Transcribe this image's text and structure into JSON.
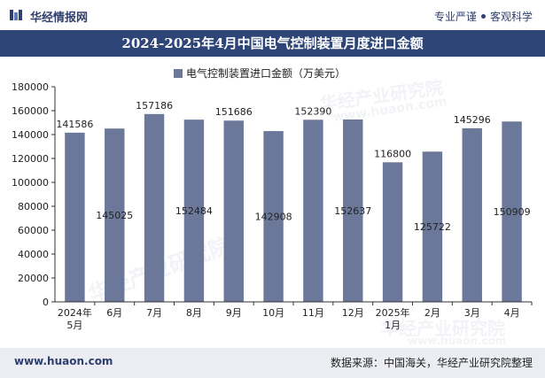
{
  "header": {
    "brand": "华经情报网",
    "slogan_left": "专业严谨",
    "slogan_right": "客观科学"
  },
  "title_bar": "2024-2025年4月中国电气控制装置月度进口金额",
  "footer": {
    "website": "www.huaon.com",
    "source": "数据来源：中国海关，华经产业研究院整理"
  },
  "watermark": {
    "text_cn": "华经产业研究院",
    "text_en": "www.huaon.com"
  },
  "colors": {
    "bar": "#6b7899",
    "title_bg": "#2d4577",
    "footer_bg": "#ebedf2",
    "brand": "#2f3f6e"
  },
  "chart_data": {
    "type": "bar",
    "title": "",
    "legend": "电气控制装置进口金额（万美元）",
    "legend_position": "top-center",
    "categories": [
      "2024年\n5月",
      "6月",
      "7月",
      "8月",
      "9月",
      "10月",
      "11月",
      "12月",
      "2025年\n1月",
      "2月",
      "3月",
      "4月"
    ],
    "values": [
      141586,
      145025,
      157186,
      152484,
      151686,
      142908,
      152390,
      152637,
      116800,
      125722,
      145296,
      150909
    ],
    "label_placement": [
      "top",
      "inside",
      "top",
      "inside",
      "top",
      "inside",
      "top",
      "inside",
      "top",
      "inside",
      "top",
      "inside"
    ],
    "ylim": [
      0,
      180000
    ],
    "yticks": [
      0,
      20000,
      40000,
      60000,
      80000,
      100000,
      120000,
      140000,
      160000,
      180000
    ],
    "grid": false
  }
}
